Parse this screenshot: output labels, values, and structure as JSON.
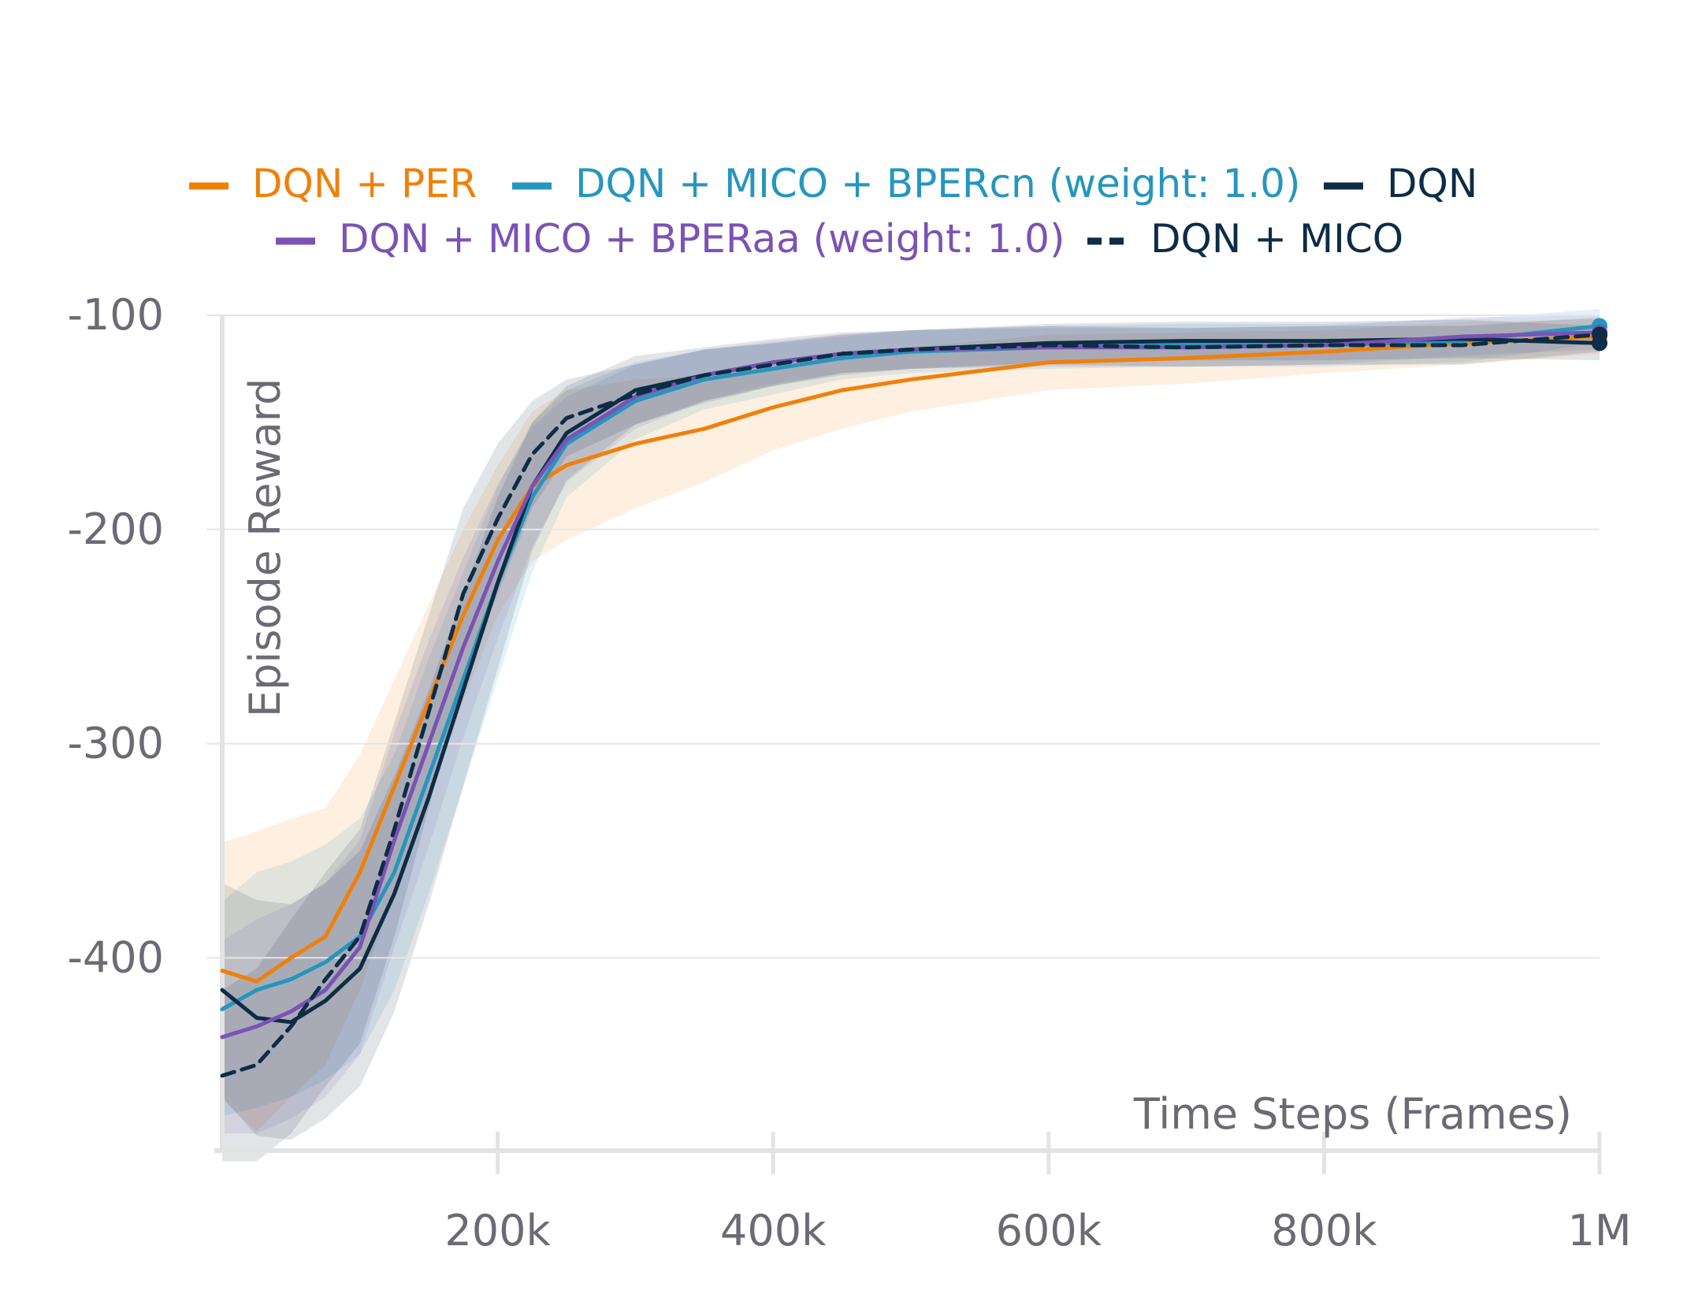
{
  "chart_data": {
    "type": "line",
    "title": "",
    "xlabel": "Time Steps (Frames)",
    "ylabel": "Episode Reward",
    "xlim": [
      0,
      1000000
    ],
    "ylim": [
      -490,
      -100
    ],
    "x_ticks": [
      {
        "value": 200000,
        "label": "200k"
      },
      {
        "value": 400000,
        "label": "400k"
      },
      {
        "value": 600000,
        "label": "600k"
      },
      {
        "value": 800000,
        "label": "800k"
      },
      {
        "value": 1000000,
        "label": "1M"
      }
    ],
    "y_ticks": [
      {
        "value": -100,
        "label": "-100"
      },
      {
        "value": -200,
        "label": "-200"
      },
      {
        "value": -300,
        "label": "-300"
      },
      {
        "value": -400,
        "label": "-400"
      }
    ],
    "grid": true,
    "legend_position": "top",
    "x": [
      0,
      25000,
      50000,
      75000,
      100000,
      125000,
      150000,
      175000,
      200000,
      225000,
      250000,
      300000,
      350000,
      400000,
      450000,
      500000,
      600000,
      700000,
      800000,
      900000,
      1000000
    ],
    "series": [
      {
        "name": "DQN + PER",
        "color": "#f0800a",
        "dash": "solid",
        "values": [
          -406,
          -411,
          -400,
          -390,
          -360,
          -320,
          -280,
          -240,
          -205,
          -180,
          -170,
          -160,
          -153,
          -143,
          -135,
          -130,
          -122,
          -120,
          -117,
          -113,
          -110
        ],
        "band": [
          60,
          70,
          65,
          60,
          55,
          50,
          45,
          40,
          35,
          35,
          35,
          30,
          25,
          20,
          18,
          15,
          13,
          12,
          10,
          10,
          8
        ]
      },
      {
        "name": "DQN + MICO + BPERcn (weight: 1.0)",
        "color": "#2596be",
        "dash": "solid",
        "values": [
          -424,
          -415,
          -410,
          -402,
          -390,
          -360,
          -315,
          -270,
          -225,
          -185,
          -160,
          -140,
          -130,
          -125,
          -120,
          -117,
          -115,
          -114,
          -114,
          -112,
          -105
        ],
        "band": [
          50,
          55,
          55,
          55,
          55,
          55,
          55,
          50,
          45,
          35,
          25,
          18,
          14,
          12,
          10,
          10,
          10,
          10,
          10,
          10,
          8
        ]
      },
      {
        "name": "DQN",
        "color": "#0d2c45",
        "dash": "solid",
        "values": [
          -415,
          -428,
          -430,
          -420,
          -405,
          -370,
          -325,
          -275,
          -225,
          -180,
          -155,
          -135,
          -128,
          -122,
          -118,
          -116,
          -113,
          -112,
          -112,
          -111,
          -113
        ],
        "band": [
          50,
          55,
          55,
          55,
          55,
          55,
          50,
          45,
          40,
          30,
          22,
          16,
          13,
          11,
          10,
          9,
          9,
          9,
          9,
          9,
          8
        ]
      },
      {
        "name": "DQN + MICO + BPERaa (weight: 1.0)",
        "color": "#7b52b5",
        "dash": "solid",
        "values": [
          -437,
          -432,
          -425,
          -415,
          -395,
          -345,
          -300,
          -255,
          -215,
          -180,
          -158,
          -138,
          -128,
          -122,
          -118,
          -116,
          -115,
          -115,
          -114,
          -110,
          -108
        ],
        "band": [
          45,
          50,
          50,
          50,
          50,
          50,
          48,
          42,
          36,
          28,
          20,
          15,
          12,
          10,
          9,
          9,
          9,
          9,
          9,
          9,
          8
        ]
      },
      {
        "name": "DQN + MICO",
        "color": "#0d2c45",
        "dash": "dashed",
        "values": [
          -455,
          -450,
          -432,
          -410,
          -390,
          -340,
          -285,
          -230,
          -195,
          -165,
          -148,
          -137,
          -128,
          -123,
          -118,
          -116,
          -114,
          -115,
          -114,
          -114,
          -109
        ],
        "band": [
          40,
          45,
          50,
          50,
          50,
          50,
          45,
          40,
          35,
          25,
          18,
          14,
          12,
          10,
          9,
          9,
          9,
          9,
          9,
          9,
          8
        ]
      }
    ]
  }
}
